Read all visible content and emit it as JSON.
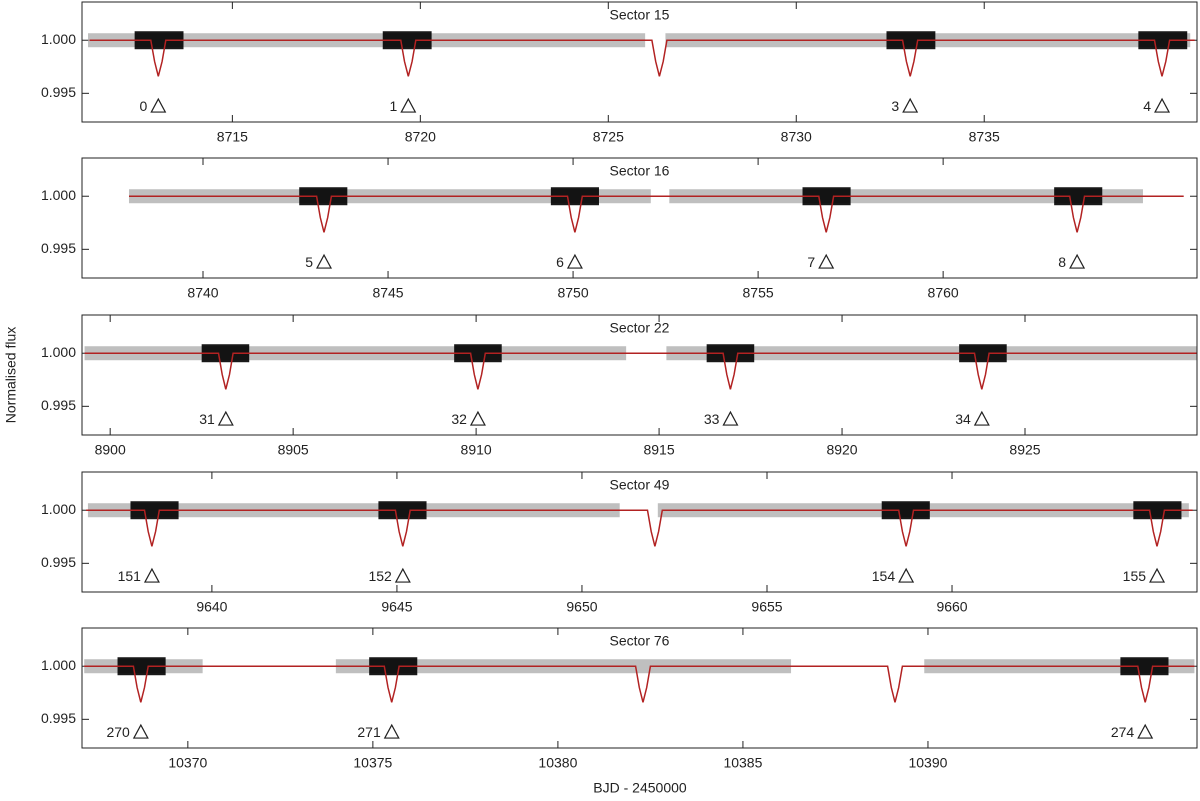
{
  "xlabel": "BJD - 2450000",
  "ylabel": "Normalised flux",
  "chart_data": [
    {
      "type": "line",
      "title": "Sector 15",
      "xlim": [
        8711.0,
        8740.66
      ],
      "ylim": [
        0.9923,
        1.0036
      ],
      "xticks": [
        8715,
        8720,
        8725,
        8730,
        8735
      ],
      "yticks": [
        {
          "value": 1.0,
          "label": "1.000"
        },
        {
          "value": 0.995,
          "label": "0.995"
        }
      ],
      "series": [
        {
          "color": "#aaaaaa",
          "spans": [
            [
              8711.16,
              8725.98
            ],
            [
              8726.52,
              8740.48
            ]
          ]
        },
        {
          "color": "#000000",
          "spans": [
            [
              8712.4,
              8713.7
            ],
            [
              8719.0,
              8720.3
            ],
            [
              8732.4,
              8733.7
            ],
            [
              8739.1,
              8740.4
            ]
          ]
        }
      ],
      "model": {
        "color": "#b22222",
        "x": [
          8711.2,
          8712.83,
          8712.93,
          8713.03,
          8713.13,
          8713.23,
          8719.48,
          8719.58,
          8719.68,
          8719.78,
          8719.88,
          8726.16,
          8726.26,
          8726.36,
          8726.46,
          8726.56,
          8732.83,
          8732.93,
          8733.03,
          8733.13,
          8733.23,
          8739.53,
          8739.63,
          8739.73,
          8739.83,
          8739.93,
          8740.6
        ],
        "values": [
          1.0,
          1.0,
          0.998,
          0.9966,
          0.998,
          1.0,
          1.0,
          0.998,
          0.9966,
          0.998,
          1.0,
          1.0,
          0.998,
          0.9966,
          0.998,
          1.0,
          1.0,
          0.998,
          0.9966,
          0.998,
          1.0,
          1.0,
          0.998,
          0.9966,
          0.998,
          1.0,
          1.0
        ]
      },
      "transits": {
        "x": [
          8713.03,
          8719.68,
          8733.03,
          8739.73
        ],
        "values": [
          0.9938,
          0.9938,
          0.9938,
          0.9938
        ],
        "labels": [
          "0",
          "1",
          "3",
          "4"
        ]
      }
    },
    {
      "type": "line",
      "title": "Sector 16",
      "xlim": [
        8736.73,
        8766.86
      ],
      "ylim": [
        0.9923,
        1.0036
      ],
      "xticks": [
        8740,
        8745,
        8750,
        8755,
        8760
      ],
      "yticks": [
        {
          "value": 1.0,
          "label": "1.000"
        },
        {
          "value": 0.995,
          "label": "0.995"
        }
      ],
      "series": [
        {
          "color": "#aaaaaa",
          "spans": [
            [
              8738.0,
              8752.1
            ],
            [
              8752.6,
              8765.4
            ]
          ]
        },
        {
          "color": "#000000",
          "spans": [
            [
              8742.6,
              8743.9
            ],
            [
              8749.4,
              8750.7
            ],
            [
              8756.2,
              8757.5
            ],
            [
              8763.0,
              8764.3
            ]
          ]
        }
      ],
      "model": {
        "color": "#b22222",
        "x": [
          8738.0,
          8743.07,
          8743.17,
          8743.27,
          8743.37,
          8743.47,
          8749.85,
          8749.95,
          8750.05,
          8750.15,
          8750.25,
          8756.64,
          8756.74,
          8756.84,
          8756.94,
          8757.04,
          8763.42,
          8763.52,
          8763.62,
          8763.72,
          8763.82,
          8766.5
        ],
        "values": [
          1.0,
          1.0,
          0.998,
          0.9966,
          0.998,
          1.0,
          1.0,
          0.998,
          0.9966,
          0.998,
          1.0,
          1.0,
          0.998,
          0.9966,
          0.998,
          1.0,
          1.0,
          0.998,
          0.9966,
          0.998,
          1.0,
          1.0
        ]
      },
      "transits": {
        "x": [
          8743.27,
          8750.05,
          8756.84,
          8763.62
        ],
        "values": [
          0.9938,
          0.9938,
          0.9938,
          0.9938
        ],
        "labels": [
          "5",
          "6",
          "7",
          "8"
        ]
      }
    },
    {
      "type": "line",
      "title": "Sector 22",
      "xlim": [
        8899.23,
        8929.7
      ],
      "ylim": [
        0.9923,
        1.0036
      ],
      "xticks": [
        8900,
        8905,
        8910,
        8915,
        8920,
        8925
      ],
      "yticks": [
        {
          "value": 1.0,
          "label": "1.000"
        },
        {
          "value": 0.995,
          "label": "0.995"
        }
      ],
      "series": [
        {
          "color": "#aaaaaa",
          "spans": [
            [
              8899.3,
              8914.1
            ],
            [
              8915.2,
              8929.7
            ]
          ]
        },
        {
          "color": "#000000",
          "spans": [
            [
              8902.5,
              8903.8
            ],
            [
              8909.4,
              8910.7
            ],
            [
              8916.3,
              8917.6
            ],
            [
              8923.2,
              8924.5
            ]
          ]
        }
      ],
      "model": {
        "color": "#b22222",
        "x": [
          8899.3,
          8902.96,
          8903.06,
          8903.16,
          8903.26,
          8903.36,
          8909.85,
          8909.95,
          8910.05,
          8910.15,
          8910.25,
          8916.75,
          8916.85,
          8916.95,
          8917.05,
          8917.15,
          8923.62,
          8923.72,
          8923.82,
          8923.92,
          8924.02,
          8929.7
        ],
        "values": [
          1.0,
          1.0,
          0.998,
          0.9966,
          0.998,
          1.0,
          1.0,
          0.998,
          0.9966,
          0.998,
          1.0,
          1.0,
          0.998,
          0.9966,
          0.998,
          1.0,
          1.0,
          0.998,
          0.9966,
          0.998,
          1.0,
          1.0
        ]
      },
      "transits": {
        "x": [
          8903.16,
          8910.05,
          8916.95,
          8923.82
        ],
        "values": [
          0.9938,
          0.9938,
          0.9938,
          0.9938
        ],
        "labels": [
          "31",
          "32",
          "33",
          "34"
        ]
      }
    },
    {
      "type": "line",
      "title": "Sector 49",
      "xlim": [
        9636.49,
        9666.62
      ],
      "ylim": [
        0.9923,
        1.0036
      ],
      "xticks": [
        9640,
        9645,
        9650,
        9655,
        9660
      ],
      "yticks": [
        {
          "value": 1.0,
          "label": "1.000"
        },
        {
          "value": 0.995,
          "label": "0.995"
        }
      ],
      "series": [
        {
          "color": "#aaaaaa",
          "spans": [
            [
              9636.65,
              9651.02
            ],
            [
              9652.05,
              9666.4
            ]
          ]
        },
        {
          "color": "#000000",
          "spans": [
            [
              9637.8,
              9639.1
            ],
            [
              9644.5,
              9645.8
            ],
            [
              9658.1,
              9659.4
            ],
            [
              9664.9,
              9666.2
            ]
          ]
        }
      ],
      "model": {
        "color": "#b22222",
        "x": [
          9636.6,
          9638.18,
          9638.28,
          9638.38,
          9638.48,
          9638.58,
          9644.96,
          9645.06,
          9645.16,
          9645.26,
          9645.36,
          9651.77,
          9651.87,
          9651.97,
          9652.07,
          9652.17,
          9658.56,
          9658.66,
          9658.76,
          9658.86,
          9658.96,
          9665.34,
          9665.44,
          9665.54,
          9665.64,
          9665.74,
          9666.5
        ],
        "values": [
          1.0,
          1.0,
          0.998,
          0.9966,
          0.998,
          1.0,
          1.0,
          0.998,
          0.9966,
          0.998,
          1.0,
          1.0,
          0.998,
          0.9966,
          0.998,
          1.0,
          1.0,
          0.998,
          0.9966,
          0.998,
          1.0,
          1.0,
          0.998,
          0.9966,
          0.998,
          1.0,
          1.0
        ]
      },
      "transits": {
        "x": [
          9638.38,
          9645.16,
          9658.76,
          9665.54
        ],
        "values": [
          0.9938,
          0.9938,
          0.9938,
          0.9938
        ],
        "labels": [
          "151",
          "152",
          "154",
          "155"
        ]
      }
    },
    {
      "type": "line",
      "title": "Sector 76",
      "xlim": [
        10367.14,
        10397.27
      ],
      "ylim": [
        0.9923,
        1.0036
      ],
      "xticks": [
        10370,
        10375,
        10380,
        10385,
        10390
      ],
      "yticks": [
        {
          "value": 1.0,
          "label": "1.000"
        },
        {
          "value": 0.995,
          "label": "0.995"
        }
      ],
      "series": [
        {
          "color": "#aaaaaa",
          "spans": [
            [
              10367.2,
              10370.4
            ],
            [
              10374.0,
              10386.3
            ],
            [
              10389.9,
              10397.2
            ]
          ]
        },
        {
          "color": "#000000",
          "spans": [
            [
              10368.1,
              10369.4
            ],
            [
              10374.9,
              10376.2
            ],
            [
              10395.2,
              10396.5
            ]
          ]
        }
      ],
      "model": {
        "color": "#b22222",
        "x": [
          10367.2,
          10368.53,
          10368.63,
          10368.73,
          10368.83,
          10368.93,
          10375.31,
          10375.41,
          10375.51,
          10375.61,
          10375.71,
          10382.1,
          10382.2,
          10382.3,
          10382.4,
          10382.5,
          10388.91,
          10389.01,
          10389.11,
          10389.21,
          10389.31,
          10395.67,
          10395.77,
          10395.87,
          10395.97,
          10396.07,
          10397.2
        ],
        "values": [
          1.0,
          1.0,
          0.998,
          0.9966,
          0.998,
          1.0,
          1.0,
          0.998,
          0.9966,
          0.998,
          1.0,
          1.0,
          0.998,
          0.9966,
          0.998,
          1.0,
          1.0,
          0.998,
          0.9966,
          0.998,
          1.0,
          1.0,
          0.998,
          0.9966,
          0.998,
          1.0,
          1.0
        ]
      },
      "transits": {
        "x": [
          10368.73,
          10375.51,
          10395.87
        ],
        "values": [
          0.9938,
          0.9938,
          0.9938
        ],
        "labels": [
          "270",
          "271",
          "274"
        ]
      }
    }
  ]
}
